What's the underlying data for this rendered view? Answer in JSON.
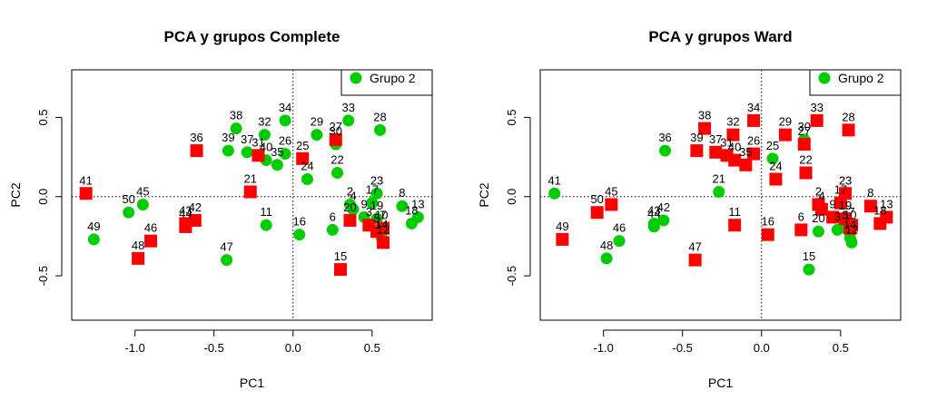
{
  "chart_data": [
    {
      "type": "scatter",
      "title": "PCA y grupos Complete",
      "xlabel": "PC1",
      "ylabel": "PC2",
      "xlim": [
        -1.4,
        0.88
      ],
      "ylim": [
        -0.78,
        0.8
      ],
      "xticks": [
        -1.0,
        -0.5,
        0.0,
        0.5
      ],
      "yticks": [
        -0.5,
        0.0,
        0.5
      ],
      "xtick_labels": [
        "-1.0",
        "-0.5",
        "0.0",
        "0.5"
      ],
      "ytick_labels": [
        "-0.5",
        "0.0",
        "0.5"
      ],
      "reference_lines": {
        "x": 0,
        "y": 0,
        "style": "dotted"
      },
      "legend": {
        "position": "top-right",
        "entries": [
          {
            "label": "Grupo 2",
            "marker": "circle",
            "color": "#00cc00"
          }
        ]
      },
      "series": [
        {
          "marker": "circle",
          "color": "#00cc00",
          "points": [
            {
              "label": "38",
              "x": -0.36,
              "y": 0.43
            },
            {
              "label": "32",
              "x": -0.18,
              "y": 0.39
            },
            {
              "label": "34",
              "x": -0.05,
              "y": 0.48
            },
            {
              "label": "29",
              "x": 0.15,
              "y": 0.39
            },
            {
              "label": "33",
              "x": 0.35,
              "y": 0.48
            },
            {
              "label": "28",
              "x": 0.55,
              "y": 0.42
            },
            {
              "label": "39",
              "x": -0.41,
              "y": 0.29
            },
            {
              "label": "37",
              "x": -0.29,
              "y": 0.28
            },
            {
              "label": "40",
              "x": -0.17,
              "y": 0.23
            },
            {
              "label": "35",
              "x": -0.1,
              "y": 0.2
            },
            {
              "label": "26",
              "x": -0.05,
              "y": 0.27
            },
            {
              "label": "30",
              "x": 0.27,
              "y": 0.33
            },
            {
              "label": "24",
              "x": 0.09,
              "y": 0.11
            },
            {
              "label": "22",
              "x": 0.28,
              "y": 0.15
            },
            {
              "label": "23",
              "x": 0.53,
              "y": 0.02
            },
            {
              "label": "17",
              "x": 0.5,
              "y": -0.04
            },
            {
              "label": "8",
              "x": 0.69,
              "y": -0.06
            },
            {
              "label": "13",
              "x": 0.79,
              "y": -0.13
            },
            {
              "label": "18",
              "x": 0.75,
              "y": -0.17
            },
            {
              "label": "2",
              "x": 0.36,
              "y": -0.05
            },
            {
              "label": "4",
              "x": 0.38,
              "y": -0.08
            },
            {
              "label": "9",
              "x": 0.45,
              "y": -0.13
            },
            {
              "label": "19",
              "x": 0.53,
              "y": -0.14
            },
            {
              "label": "10",
              "x": 0.56,
              "y": -0.2
            },
            {
              "label": "14",
              "x": 0.56,
              "y": -0.26
            },
            {
              "label": "6",
              "x": 0.25,
              "y": -0.21
            },
            {
              "label": "16",
              "x": 0.04,
              "y": -0.24
            },
            {
              "label": "11",
              "x": -0.17,
              "y": -0.18
            },
            {
              "label": "47",
              "x": -0.42,
              "y": -0.4
            },
            {
              "label": "45",
              "x": -0.95,
              "y": -0.05
            },
            {
              "label": "50",
              "x": -1.04,
              "y": -0.1
            },
            {
              "label": "49",
              "x": -1.26,
              "y": -0.27
            }
          ]
        },
        {
          "marker": "square",
          "color": "#ff0000",
          "points": [
            {
              "label": "36",
              "x": -0.61,
              "y": 0.29
            },
            {
              "label": "31",
              "x": -0.22,
              "y": 0.26
            },
            {
              "label": "27",
              "x": 0.27,
              "y": 0.36
            },
            {
              "label": "25",
              "x": 0.06,
              "y": 0.24
            },
            {
              "label": "21",
              "x": -0.27,
              "y": 0.03
            },
            {
              "label": "41",
              "x": -1.31,
              "y": 0.02
            },
            {
              "label": "42",
              "x": -0.62,
              "y": -0.15
            },
            {
              "label": "43",
              "x": -0.68,
              "y": -0.17
            },
            {
              "label": "44",
              "x": -0.68,
              "y": -0.19
            },
            {
              "label": "46",
              "x": -0.9,
              "y": -0.28
            },
            {
              "label": "48",
              "x": -0.98,
              "y": -0.39
            },
            {
              "label": "20",
              "x": 0.36,
              "y": -0.15
            },
            {
              "label": "3",
              "x": 0.48,
              "y": -0.18
            },
            {
              "label": "5",
              "x": 0.53,
              "y": -0.22
            },
            {
              "label": "7",
              "x": 0.57,
              "y": -0.2
            },
            {
              "label": "12",
              "x": 0.57,
              "y": -0.29
            },
            {
              "label": "15",
              "x": 0.3,
              "y": -0.46
            }
          ]
        }
      ]
    },
    {
      "type": "scatter",
      "title": "PCA y grupos Ward",
      "xlabel": "PC1",
      "ylabel": "PC2",
      "xlim": [
        -1.4,
        0.88
      ],
      "ylim": [
        -0.78,
        0.8
      ],
      "xticks": [
        -1.0,
        -0.5,
        0.0,
        0.5
      ],
      "yticks": [
        -0.5,
        0.0,
        0.5
      ],
      "xtick_labels": [
        "-1.0",
        "-0.5",
        "0.0",
        "0.5"
      ],
      "ytick_labels": [
        "-0.5",
        "0.0",
        "0.5"
      ],
      "reference_lines": {
        "x": 0,
        "y": 0,
        "style": "dotted"
      },
      "legend": {
        "position": "top-right",
        "entries": [
          {
            "label": "Grupo 2",
            "marker": "circle",
            "color": "#00cc00"
          }
        ]
      },
      "series": [
        {
          "marker": "circle",
          "color": "#00cc00",
          "points": [
            {
              "label": "36",
              "x": -0.61,
              "y": 0.29
            },
            {
              "label": "30",
              "x": 0.27,
              "y": 0.36
            },
            {
              "label": "25",
              "x": 0.07,
              "y": 0.24
            },
            {
              "label": "21",
              "x": -0.27,
              "y": 0.03
            },
            {
              "label": "41",
              "x": -1.31,
              "y": 0.02
            },
            {
              "label": "42",
              "x": -0.62,
              "y": -0.15
            },
            {
              "label": "43",
              "x": -0.68,
              "y": -0.17
            },
            {
              "label": "44",
              "x": -0.68,
              "y": -0.19
            },
            {
              "label": "46",
              "x": -0.9,
              "y": -0.28
            },
            {
              "label": "48",
              "x": -0.98,
              "y": -0.39
            },
            {
              "label": "20",
              "x": 0.36,
              "y": -0.22
            },
            {
              "label": "3",
              "x": 0.48,
              "y": -0.21
            },
            {
              "label": "5",
              "x": 0.53,
              "y": -0.2
            },
            {
              "label": "14",
              "x": 0.56,
              "y": -0.26
            },
            {
              "label": "12",
              "x": 0.57,
              "y": -0.29
            },
            {
              "label": "15",
              "x": 0.3,
              "y": -0.46
            }
          ]
        },
        {
          "marker": "square",
          "color": "#ff0000",
          "points": [
            {
              "label": "38",
              "x": -0.36,
              "y": 0.43
            },
            {
              "label": "32",
              "x": -0.18,
              "y": 0.39
            },
            {
              "label": "34",
              "x": -0.05,
              "y": 0.48
            },
            {
              "label": "29",
              "x": 0.15,
              "y": 0.39
            },
            {
              "label": "33",
              "x": 0.35,
              "y": 0.48
            },
            {
              "label": "28",
              "x": 0.55,
              "y": 0.42
            },
            {
              "label": "27",
              "x": 0.27,
              "y": 0.33
            },
            {
              "label": "39",
              "x": -0.41,
              "y": 0.29
            },
            {
              "label": "37",
              "x": -0.29,
              "y": 0.28
            },
            {
              "label": "31",
              "x": -0.22,
              "y": 0.26
            },
            {
              "label": "40",
              "x": -0.17,
              "y": 0.23
            },
            {
              "label": "35",
              "x": -0.1,
              "y": 0.2
            },
            {
              "label": "26",
              "x": -0.05,
              "y": 0.27
            },
            {
              "label": "24",
              "x": 0.09,
              "y": 0.11
            },
            {
              "label": "22",
              "x": 0.28,
              "y": 0.15
            },
            {
              "label": "23",
              "x": 0.53,
              "y": 0.02
            },
            {
              "label": "17",
              "x": 0.5,
              "y": -0.04
            },
            {
              "label": "8",
              "x": 0.69,
              "y": -0.06
            },
            {
              "label": "13",
              "x": 0.79,
              "y": -0.13
            },
            {
              "label": "18",
              "x": 0.75,
              "y": -0.17
            },
            {
              "label": "2",
              "x": 0.36,
              "y": -0.05
            },
            {
              "label": "4",
              "x": 0.38,
              "y": -0.08
            },
            {
              "label": "9",
              "x": 0.45,
              "y": -0.13
            },
            {
              "label": "19",
              "x": 0.53,
              "y": -0.14
            },
            {
              "label": "10",
              "x": 0.56,
              "y": -0.2
            },
            {
              "label": "7",
              "x": 0.57,
              "y": -0.18
            },
            {
              "label": "6",
              "x": 0.25,
              "y": -0.21
            },
            {
              "label": "16",
              "x": 0.04,
              "y": -0.24
            },
            {
              "label": "11",
              "x": -0.17,
              "y": -0.18
            },
            {
              "label": "47",
              "x": -0.42,
              "y": -0.4
            },
            {
              "label": "45",
              "x": -0.95,
              "y": -0.05
            },
            {
              "label": "50",
              "x": -1.04,
              "y": -0.1
            },
            {
              "label": "49",
              "x": -1.26,
              "y": -0.27
            }
          ]
        }
      ]
    }
  ]
}
